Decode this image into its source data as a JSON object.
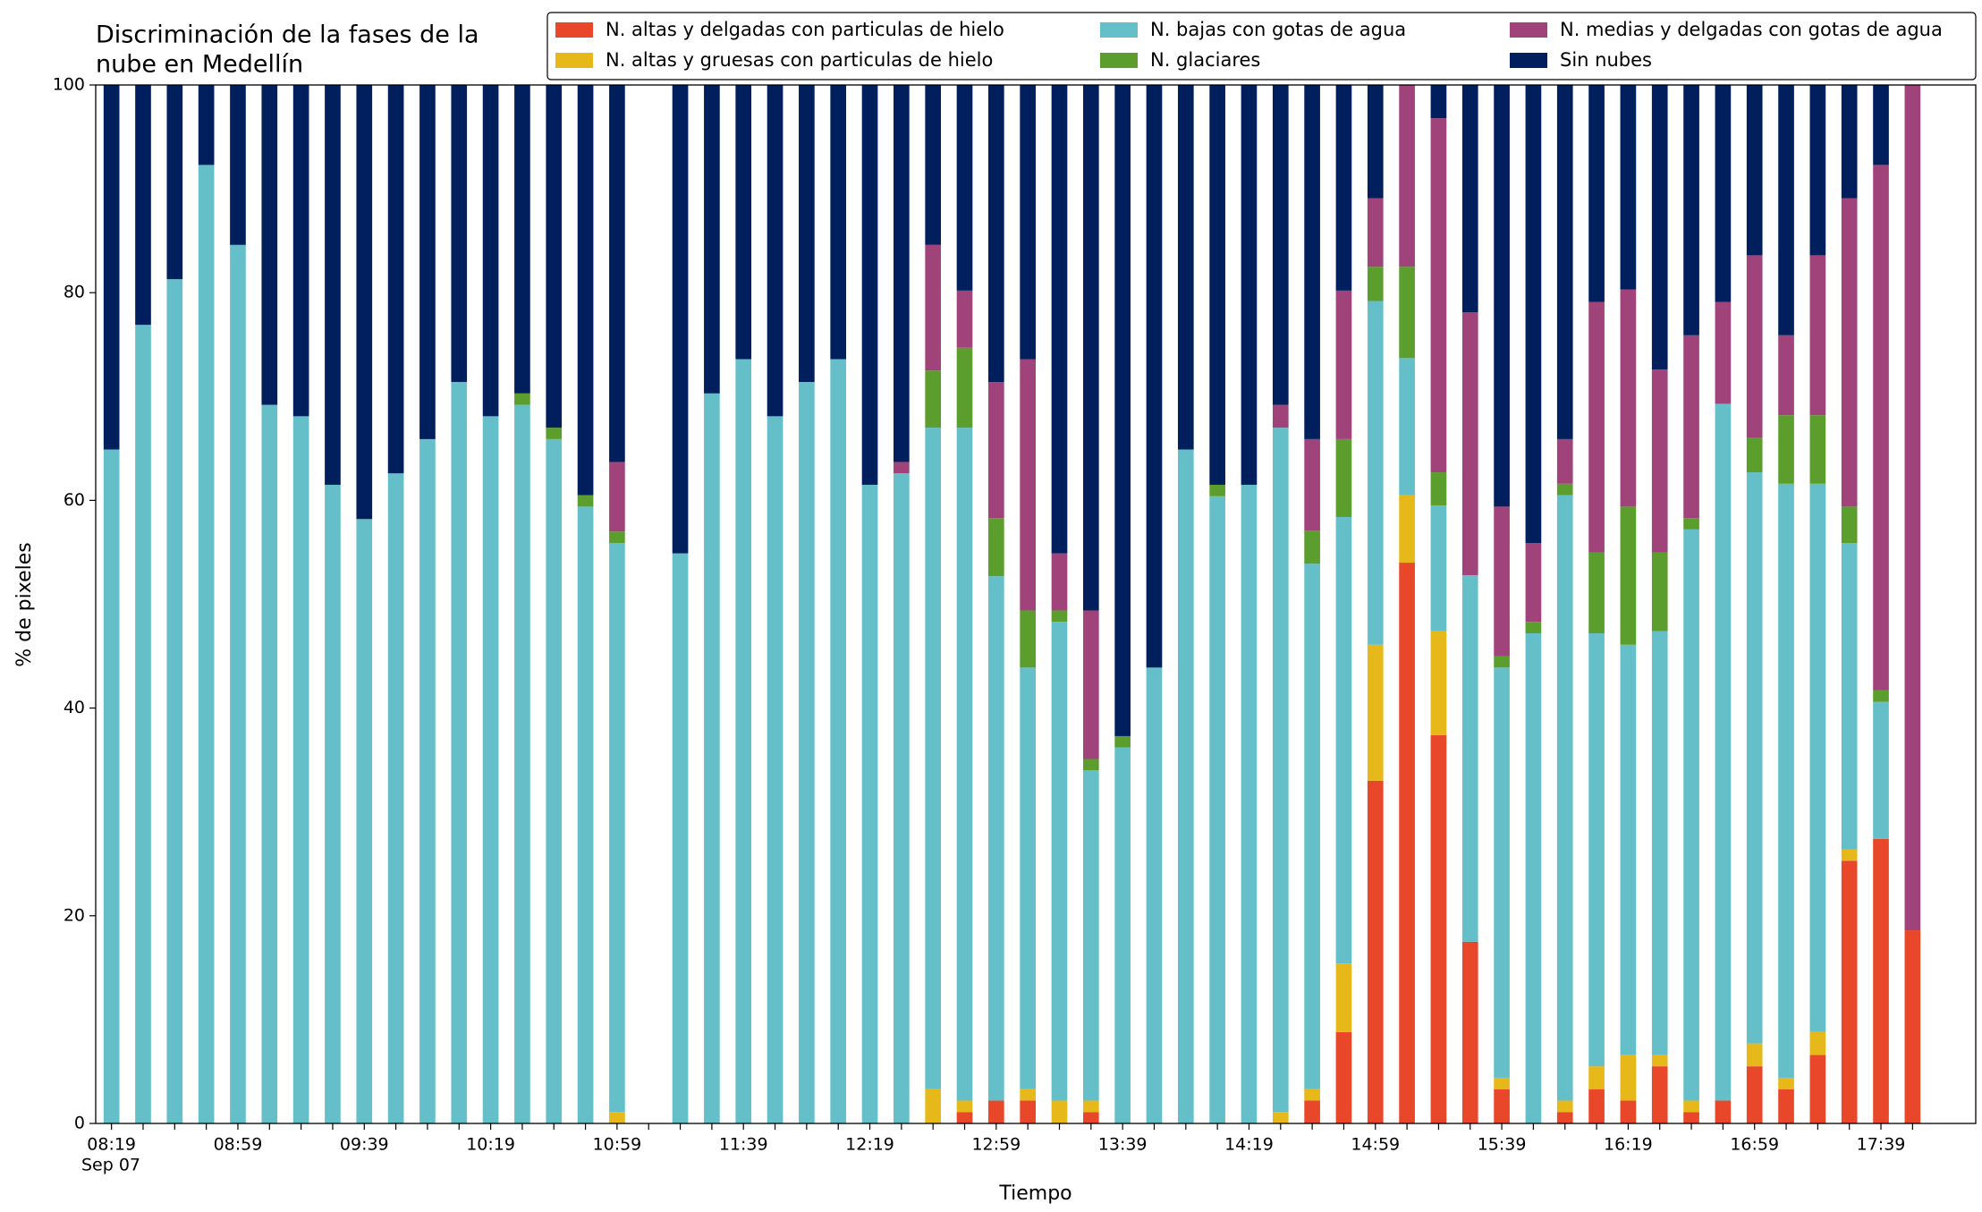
{
  "chart_data": {
    "type": "stacked_bar",
    "title": [
      "Discriminación de la fases de la",
      "nube en Medellín"
    ],
    "x_label": "Tiempo",
    "x_sublabel": "Sep 07",
    "y_label": "% de pixeles",
    "categories": [
      "08:19",
      null,
      null,
      null,
      "08:59",
      null,
      null,
      null,
      "09:39",
      null,
      null,
      null,
      "10:19",
      null,
      null,
      null,
      "10:59",
      null,
      null,
      null,
      "11:39",
      null,
      null,
      null,
      "12:19",
      null,
      null,
      null,
      "12:59",
      null,
      null,
      null,
      "13:39",
      null,
      null,
      null,
      "14:19",
      null,
      null,
      null,
      "14:59",
      null,
      null,
      null,
      "15:39",
      null,
      null,
      null,
      "16:19",
      null,
      null,
      null,
      "16:59",
      null,
      null,
      null,
      "17:39",
      null
    ],
    "series": [
      {
        "name": "N. altas y delgadas con particulas de hielo",
        "color": "#e8472a",
        "values": [
          0,
          0,
          0,
          0,
          0,
          0,
          0,
          0,
          0,
          0,
          0,
          0,
          0,
          0,
          0,
          0,
          0,
          null,
          0,
          0,
          0,
          0,
          0,
          0,
          0,
          0,
          0,
          1.1,
          2.2,
          2.2,
          0,
          1.1,
          0,
          0,
          0,
          0,
          0,
          0,
          2.2,
          8.8,
          33.0,
          54.0,
          37.4,
          17.5,
          3.3,
          0,
          1.1,
          3.3,
          2.2,
          5.5,
          1.1,
          2.2,
          5.5,
          3.3,
          6.6,
          25.3,
          27.4,
          18.6
        ]
      },
      {
        "name": "N. altas y gruesas con particulas de hielo",
        "color": "#e6b81a",
        "values": [
          0,
          0,
          0,
          0,
          0,
          0,
          0,
          0,
          0,
          0,
          0,
          0,
          0,
          0,
          0,
          0,
          1.1,
          null,
          0,
          0,
          0,
          0,
          0,
          0,
          0,
          0,
          3.3,
          1.1,
          0,
          1.1,
          2.2,
          1.1,
          0,
          0,
          0,
          0,
          0,
          1.1,
          1.1,
          6.6,
          13.1,
          6.5,
          10.0,
          0,
          1.1,
          0,
          1.1,
          2.2,
          4.4,
          1.1,
          1.1,
          0,
          2.2,
          1.1,
          2.2,
          1.1,
          0,
          0
        ]
      },
      {
        "name": "N. bajas con gotas de agua",
        "color": "#65bfc9",
        "values": [
          64.9,
          76.9,
          81.3,
          92.3,
          84.6,
          69.2,
          68.1,
          61.5,
          58.2,
          62.6,
          65.9,
          71.4,
          68.1,
          69.2,
          65.9,
          59.4,
          54.8,
          null,
          54.9,
          70.3,
          73.6,
          68.1,
          71.4,
          73.6,
          61.5,
          62.6,
          63.7,
          64.8,
          50.5,
          40.6,
          46.1,
          31.8,
          36.2,
          43.9,
          64.9,
          60.4,
          61.5,
          65.9,
          50.6,
          43.0,
          33.1,
          13.2,
          12.1,
          35.3,
          39.5,
          47.2,
          58.3,
          41.7,
          39.5,
          40.8,
          55.0,
          67.1,
          55.0,
          57.2,
          52.8,
          29.5,
          13.2,
          0
        ]
      },
      {
        "name": "N. glaciares",
        "color": "#5c9e2e",
        "values": [
          0,
          0,
          0,
          0,
          0,
          0,
          0,
          0,
          0,
          0,
          0,
          0,
          0,
          1.1,
          1.1,
          1.1,
          1.1,
          null,
          0,
          0,
          0,
          0,
          0,
          0,
          0,
          0,
          5.5,
          7.7,
          5.6,
          5.5,
          1.1,
          1.1,
          1.1,
          0,
          0,
          1.1,
          0,
          0,
          3.2,
          7.5,
          3.3,
          8.8,
          3.2,
          0,
          1.1,
          1.1,
          1.1,
          7.8,
          13.3,
          7.6,
          1.1,
          0,
          3.3,
          6.6,
          6.6,
          3.5,
          1.1,
          0
        ]
      },
      {
        "name": "N. medias y delgadas con gotas de agua",
        "color": "#a0437a",
        "values": [
          0,
          0,
          0,
          0,
          0,
          0,
          0,
          0,
          0,
          0,
          0,
          0,
          0,
          0,
          0,
          0,
          6.7,
          null,
          0,
          0,
          0,
          0,
          0,
          0,
          0,
          1.1,
          12.1,
          5.5,
          13.1,
          24.2,
          5.5,
          14.3,
          0,
          0,
          0,
          0,
          0,
          2.2,
          8.8,
          14.3,
          6.6,
          17.5,
          34.1,
          25.3,
          14.4,
          7.6,
          4.3,
          24.1,
          20.9,
          17.6,
          17.6,
          9.8,
          17.6,
          7.7,
          15.4,
          29.7,
          50.6,
          81.4
        ]
      },
      {
        "name": "Sin nubes",
        "color": "#001f5c",
        "values": [
          35.1,
          23.1,
          18.7,
          7.7,
          15.4,
          30.8,
          31.9,
          38.5,
          41.8,
          37.4,
          34.1,
          28.6,
          31.9,
          29.7,
          33.0,
          39.5,
          36.3,
          null,
          45.1,
          29.7,
          26.4,
          31.9,
          28.6,
          26.4,
          38.5,
          36.3,
          15.4,
          19.8,
          28.6,
          26.4,
          45.1,
          50.6,
          62.7,
          56.1,
          35.1,
          38.5,
          38.5,
          30.8,
          34.1,
          19.8,
          10.9,
          0,
          3.2,
          21.9,
          40.6,
          44.1,
          34.1,
          20.9,
          19.7,
          27.4,
          24.1,
          20.9,
          16.4,
          24.1,
          16.4,
          10.9,
          7.7,
          0
        ]
      }
    ],
    "ylim": [
      0,
      100
    ],
    "yticks": [
      0,
      20,
      40,
      60,
      80,
      100
    ],
    "grid": false,
    "legend": "upper right"
  }
}
